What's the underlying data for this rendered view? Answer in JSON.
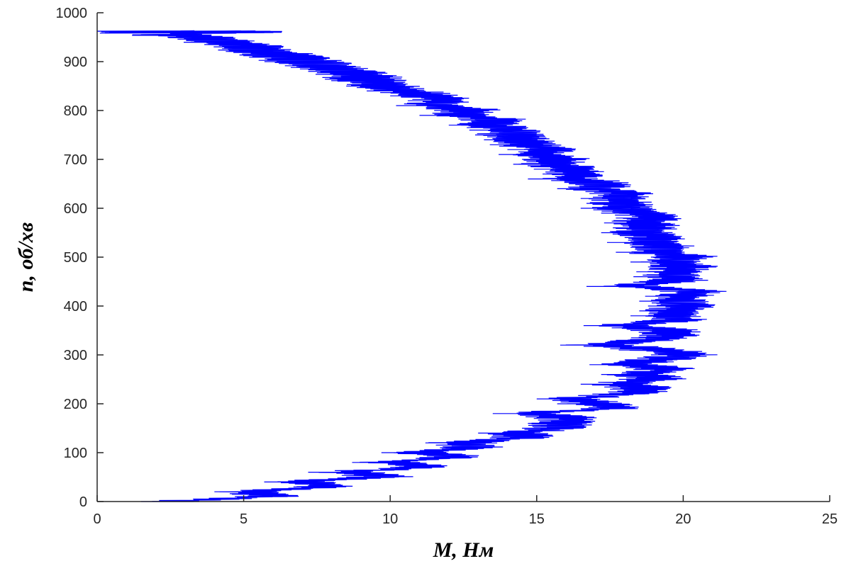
{
  "chart_data": {
    "type": "line",
    "title": "",
    "xlabel": "M, Нм",
    "ylabel": "n, об/хв",
    "xlim": [
      0,
      25
    ],
    "ylim": [
      0,
      1000
    ],
    "xticks": [
      0,
      5,
      10,
      15,
      20,
      25
    ],
    "yticks": [
      0,
      100,
      200,
      300,
      400,
      500,
      600,
      700,
      800,
      900,
      1000
    ],
    "grid": false,
    "legend": "none",
    "series": [
      {
        "color": "#0000ff",
        "points": [
          [
            3.3,
            0
          ],
          [
            6.5,
            10
          ],
          [
            5.8,
            20
          ],
          [
            8.5,
            30
          ],
          [
            7.5,
            40
          ],
          [
            10.3,
            50
          ],
          [
            9.0,
            60
          ],
          [
            11.8,
            70
          ],
          [
            10.5,
            80
          ],
          [
            12.8,
            90
          ],
          [
            11.5,
            100
          ],
          [
            13.5,
            110
          ],
          [
            13.0,
            120
          ],
          [
            15.2,
            130
          ],
          [
            14.8,
            140
          ],
          [
            16.3,
            150
          ],
          [
            16.5,
            160
          ],
          [
            16.7,
            170
          ],
          [
            15.3,
            180
          ],
          [
            18.3,
            190
          ],
          [
            17.5,
            200
          ],
          [
            16.8,
            210
          ],
          [
            18.7,
            220
          ],
          [
            19.3,
            230
          ],
          [
            18.3,
            240
          ],
          [
            19.6,
            250
          ],
          [
            19.0,
            260
          ],
          [
            20.1,
            270
          ],
          [
            18.6,
            280
          ],
          [
            19.8,
            290
          ],
          [
            20.7,
            300
          ],
          [
            19.6,
            310
          ],
          [
            17.6,
            320
          ],
          [
            19.5,
            330
          ],
          [
            20.3,
            340
          ],
          [
            20.0,
            350
          ],
          [
            18.4,
            360
          ],
          [
            20.4,
            370
          ],
          [
            20.0,
            380
          ],
          [
            20.3,
            390
          ],
          [
            20.6,
            400
          ],
          [
            20.3,
            410
          ],
          [
            20.5,
            420
          ],
          [
            21.0,
            430
          ],
          [
            18.5,
            440
          ],
          [
            20.3,
            450
          ],
          [
            20.1,
            460
          ],
          [
            20.2,
            470
          ],
          [
            20.6,
            480
          ],
          [
            20.0,
            490
          ],
          [
            20.7,
            500
          ],
          [
            19.5,
            510
          ],
          [
            20.0,
            520
          ],
          [
            19.2,
            530
          ],
          [
            19.8,
            540
          ],
          [
            19.0,
            550
          ],
          [
            19.4,
            560
          ],
          [
            19.1,
            570
          ],
          [
            19.5,
            580
          ],
          [
            19.0,
            590
          ],
          [
            18.3,
            600
          ],
          [
            18.5,
            610
          ],
          [
            18.3,
            620
          ],
          [
            18.6,
            630
          ],
          [
            17.5,
            640
          ],
          [
            17.9,
            650
          ],
          [
            16.5,
            660
          ],
          [
            17.0,
            670
          ],
          [
            16.7,
            680
          ],
          [
            16.0,
            690
          ],
          [
            16.3,
            700
          ],
          [
            15.5,
            710
          ],
          [
            15.8,
            720
          ],
          [
            15.2,
            730
          ],
          [
            15.0,
            740
          ],
          [
            14.7,
            750
          ],
          [
            14.5,
            760
          ],
          [
            13.8,
            770
          ],
          [
            14.2,
            780
          ],
          [
            12.8,
            790
          ],
          [
            13.3,
            800
          ],
          [
            12.0,
            810
          ],
          [
            12.4,
            820
          ],
          [
            11.8,
            830
          ],
          [
            11.0,
            840
          ],
          [
            10.3,
            850
          ],
          [
            10.0,
            860
          ],
          [
            9.8,
            870
          ],
          [
            9.0,
            880
          ],
          [
            8.6,
            890
          ],
          [
            7.8,
            900
          ],
          [
            7.3,
            910
          ],
          [
            6.5,
            920
          ],
          [
            5.8,
            930
          ],
          [
            5.0,
            940
          ],
          [
            4.2,
            950
          ],
          [
            3.0,
            955
          ],
          [
            6.3,
            960
          ],
          [
            0.3,
            962
          ],
          [
            0,
            963
          ]
        ]
      }
    ]
  }
}
